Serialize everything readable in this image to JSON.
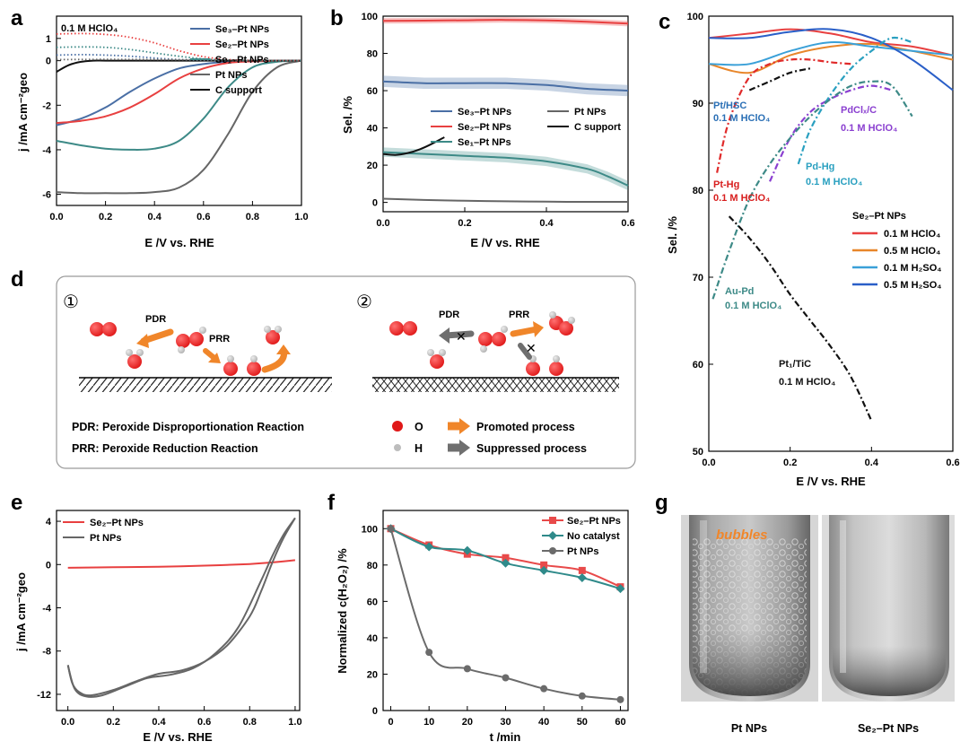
{
  "panels": {
    "a": {
      "label": "a",
      "condition": "0.1 M HClO₄",
      "xlabel": "E /V vs. RHE",
      "ylabel": "j /mA cm⁻²geo",
      "xticks": [
        "0.0",
        "0.2",
        "0.4",
        "0.6",
        "0.8",
        "1.0"
      ],
      "yticks": [
        "1",
        "0",
        "-2",
        "-4",
        "-6"
      ],
      "legend": [
        "Se₃–Pt NPs",
        "Se₂–Pt NPs",
        "Se₁–Pt NPs",
        "Pt NPs",
        "C support"
      ]
    },
    "b": {
      "label": "b",
      "xlabel": "E /V vs. RHE",
      "ylabel": "Sel. /%",
      "xticks": [
        "0.0",
        "0.2",
        "0.4",
        "0.6"
      ],
      "yticks": [
        "100",
        "80",
        "60",
        "40",
        "20",
        "0"
      ],
      "legend": [
        "Se₃–Pt NPs",
        "Se₂–Pt NPs",
        "Se₁–Pt NPs",
        "Pt NPs",
        "C support"
      ]
    },
    "c": {
      "label": "c",
      "xlabel": "E /V vs. RHE",
      "ylabel": "Sel. /%",
      "xticks": [
        "0.0",
        "0.2",
        "0.4",
        "0.6"
      ],
      "yticks": [
        "100",
        "90",
        "80",
        "70",
        "60",
        "50"
      ],
      "legend_title": "Se₂–Pt NPs",
      "legend": [
        "0.1 M HClO₄",
        "0.5 M HClO₄",
        "0.1 M H₂SO₄",
        "0.5 M H₂SO₄"
      ],
      "annotations": {
        "pthsc": [
          "Pt/HSC",
          "0.1 M HClO₄"
        ],
        "pdcl": [
          "PdClₓ/C",
          "0.1 M HClO₄"
        ],
        "pthg": [
          "Pt-Hg",
          "0.1 M HClO₄"
        ],
        "pdhg": [
          "Pd-Hg",
          "0.1 M HClO₄"
        ],
        "aupd": [
          "Au-Pd",
          "0.1 M HClO₄"
        ],
        "pttic": [
          "Pt₁/TiC",
          "0.1 M HClO₄"
        ]
      }
    },
    "d": {
      "label": "d",
      "scheme1": "①",
      "scheme2": "②",
      "pdr": "PDR",
      "prr": "PRR",
      "def_pdr": "PDR: Peroxide Disproportionation Reaction",
      "def_prr": "PRR: Peroxide Reduction Reaction",
      "key_o": "O",
      "key_h": "H",
      "key_promoted": "Promoted process",
      "key_suppressed": "Suppressed process"
    },
    "e": {
      "label": "e",
      "xlabel": "E /V vs. RHE",
      "ylabel": "j /mA cm⁻²geo",
      "xticks": [
        "0.0",
        "0.2",
        "0.4",
        "0.6",
        "0.8",
        "1.0"
      ],
      "yticks": [
        "4",
        "0",
        "-4",
        "-8",
        "-12"
      ],
      "legend": [
        "Se₂–Pt NPs",
        "Pt NPs"
      ]
    },
    "f": {
      "label": "f",
      "xlabel": "t /min",
      "ylabel": "Normalized c(H₂O₂) /%",
      "xticks": [
        "0",
        "10",
        "20",
        "30",
        "40",
        "50",
        "60"
      ],
      "yticks": [
        "100",
        "80",
        "60",
        "40",
        "20",
        "0"
      ],
      "legend": [
        "Se₂–Pt NPs",
        "No catalyst",
        "Pt NPs"
      ]
    },
    "g": {
      "label": "g",
      "bubbles": "bubbles",
      "caption_left": "Pt NPs",
      "caption_right": "Se₂–Pt NPs"
    }
  },
  "chart_data": [
    {
      "panel": "a",
      "type": "line",
      "xlabel": "E /V vs. RHE",
      "ylabel": "j /mA cm-2 geo",
      "xlim": [
        0,
        1.0
      ],
      "ylim": [
        -6.5,
        2.0
      ],
      "series": [
        {
          "name": "Se3-Pt NPs (disk)",
          "color": "#4a6fa5",
          "x": [
            0,
            0.1,
            0.2,
            0.3,
            0.4,
            0.5,
            0.6,
            0.7,
            0.8,
            0.9,
            1.0
          ],
          "y": [
            -2.9,
            -2.6,
            -2.1,
            -1.4,
            -0.8,
            -0.35,
            -0.15,
            -0.05,
            -0.02,
            -0.01,
            0
          ]
        },
        {
          "name": "Se2-Pt NPs (disk)",
          "color": "#e84040",
          "x": [
            0,
            0.1,
            0.2,
            0.3,
            0.4,
            0.5,
            0.6,
            0.7,
            0.8,
            0.9,
            1.0
          ],
          "y": [
            -2.8,
            -2.7,
            -2.5,
            -2.1,
            -1.5,
            -0.8,
            -0.35,
            -0.1,
            -0.03,
            -0.01,
            0
          ]
        },
        {
          "name": "Se1-Pt NPs (disk)",
          "color": "#3d8a87",
          "x": [
            0,
            0.1,
            0.2,
            0.3,
            0.4,
            0.5,
            0.6,
            0.7,
            0.8,
            0.9,
            1.0
          ],
          "y": [
            -3.6,
            -3.8,
            -3.95,
            -4.0,
            -3.95,
            -3.6,
            -2.6,
            -1.2,
            -0.3,
            -0.05,
            0
          ]
        },
        {
          "name": "Pt NPs (disk)",
          "color": "#666666",
          "x": [
            0,
            0.1,
            0.2,
            0.3,
            0.4,
            0.5,
            0.6,
            0.7,
            0.8,
            0.9,
            1.0
          ],
          "y": [
            -5.9,
            -5.95,
            -5.95,
            -5.95,
            -5.9,
            -5.7,
            -4.9,
            -3.3,
            -1.4,
            -0.3,
            0
          ]
        },
        {
          "name": "C support (disk)",
          "color": "#111111",
          "x": [
            0,
            0.05,
            0.1,
            0.15,
            0.2,
            0.3,
            0.5,
            0.8,
            1.0
          ],
          "y": [
            -0.5,
            -0.2,
            -0.05,
            0,
            0,
            0,
            0,
            0,
            0
          ]
        },
        {
          "name": "Se3-Pt NPs (ring)",
          "color": "#4a6fa5",
          "dotted": true,
          "x": [
            0,
            0.1,
            0.2,
            0.3,
            0.4,
            0.5,
            0.6,
            0.7,
            0.8,
            1.0
          ],
          "y": [
            0.25,
            0.27,
            0.25,
            0.2,
            0.12,
            0.05,
            0.02,
            0.01,
            0,
            0
          ]
        },
        {
          "name": "Se2-Pt NPs (ring)",
          "color": "#e84040",
          "dotted": true,
          "x": [
            0,
            0.1,
            0.2,
            0.3,
            0.4,
            0.5,
            0.6,
            0.7,
            0.8,
            1.0
          ],
          "y": [
            1.2,
            1.22,
            1.18,
            1.05,
            0.8,
            0.45,
            0.18,
            0.05,
            0.01,
            0
          ]
        },
        {
          "name": "Se1-Pt NPs (ring)",
          "color": "#3d8a87",
          "dotted": true,
          "x": [
            0,
            0.1,
            0.2,
            0.3,
            0.4,
            0.5,
            0.6,
            0.7,
            0.8,
            1.0
          ],
          "y": [
            0.6,
            0.62,
            0.6,
            0.5,
            0.35,
            0.2,
            0.08,
            0.02,
            0,
            0
          ]
        },
        {
          "name": "Pt NPs (ring)",
          "color": "#666666",
          "dotted": true,
          "x": [
            0,
            0.2,
            0.4,
            0.6,
            0.8,
            1.0
          ],
          "y": [
            0.05,
            0.06,
            0.05,
            0.03,
            0.01,
            0
          ]
        }
      ]
    },
    {
      "panel": "b",
      "type": "line",
      "xlabel": "E /V vs. RHE",
      "ylabel": "Sel. /%",
      "xlim": [
        0,
        0.6
      ],
      "ylim": [
        -5,
        100
      ],
      "series": [
        {
          "name": "Se3-Pt NPs",
          "color": "#4a6fa5",
          "band": 3,
          "x": [
            0,
            0.1,
            0.2,
            0.3,
            0.4,
            0.5,
            0.6
          ],
          "y": [
            65,
            64,
            64,
            64,
            63,
            61,
            60
          ]
        },
        {
          "name": "Se2-Pt NPs",
          "color": "#e84040",
          "band": 1.5,
          "x": [
            0,
            0.1,
            0.2,
            0.3,
            0.4,
            0.5,
            0.6
          ],
          "y": [
            97.5,
            97.6,
            97.8,
            98,
            97.7,
            97,
            96
          ]
        },
        {
          "name": "Se1-Pt NPs",
          "color": "#3d8a87",
          "band": 2.5,
          "x": [
            0,
            0.1,
            0.2,
            0.3,
            0.4,
            0.5,
            0.55,
            0.6
          ],
          "y": [
            27,
            26,
            25,
            24,
            22,
            18,
            14,
            9
          ]
        },
        {
          "name": "Pt NPs",
          "color": "#666666",
          "x": [
            0,
            0.1,
            0.2,
            0.3,
            0.4,
            0.5,
            0.6
          ],
          "y": [
            2,
            1.3,
            0.9,
            0.6,
            0.4,
            0.3,
            0.3
          ]
        },
        {
          "name": "C support",
          "color": "#111111",
          "x": [
            0,
            0.03,
            0.06,
            0.09,
            0.12,
            0.15
          ],
          "y": [
            26,
            25.5,
            26.5,
            28.5,
            31.5,
            35
          ]
        }
      ]
    },
    {
      "panel": "c",
      "type": "line",
      "xlabel": "E /V vs. RHE",
      "ylabel": "Sel. /%",
      "xlim": [
        0,
        0.6
      ],
      "ylim": [
        50,
        100
      ],
      "series": [
        {
          "name": "Se2-Pt NPs 0.1 M HClO4",
          "color": "#e84040",
          "x": [
            0,
            0.1,
            0.2,
            0.3,
            0.4,
            0.5,
            0.6
          ],
          "y": [
            97.5,
            98,
            98.5,
            98,
            97,
            96.5,
            95.5
          ]
        },
        {
          "name": "Se2-Pt NPs 0.5 M HClO4",
          "color": "#e8862a",
          "x": [
            0,
            0.1,
            0.2,
            0.3,
            0.4,
            0.5,
            0.6
          ],
          "y": [
            94.5,
            93.5,
            95.5,
            96.5,
            96.8,
            96,
            95
          ]
        },
        {
          "name": "Se2-Pt NPs 0.1 M H2SO4",
          "color": "#3aa0d8",
          "x": [
            0,
            0.1,
            0.2,
            0.3,
            0.4,
            0.5,
            0.6
          ],
          "y": [
            94.5,
            94.5,
            96,
            97,
            96.5,
            96,
            95.5
          ]
        },
        {
          "name": "Se2-Pt NPs 0.5 M H2SO4",
          "color": "#2a5fc8",
          "x": [
            0,
            0.1,
            0.2,
            0.3,
            0.4,
            0.5,
            0.6
          ],
          "y": [
            97.5,
            97.5,
            98.2,
            98.5,
            97.5,
            95,
            91.5
          ]
        },
        {
          "name": "Pt/HSC",
          "color": "#111111",
          "dashdot": true,
          "x": [
            0.1,
            0.15,
            0.2,
            0.25
          ],
          "y": [
            91.5,
            92.5,
            93.5,
            94
          ]
        },
        {
          "name": "PdClx/C",
          "color": "#8a3fd0",
          "dashdot": true,
          "x": [
            0.15,
            0.2,
            0.25,
            0.3,
            0.35,
            0.4,
            0.45
          ],
          "y": [
            81,
            86,
            89,
            90.5,
            91.5,
            92,
            91.5
          ]
        },
        {
          "name": "Pt-Hg",
          "color": "#e02a2a",
          "dashdot": true,
          "x": [
            0.02,
            0.05,
            0.1,
            0.15,
            0.2,
            0.25,
            0.3,
            0.35
          ],
          "y": [
            82,
            88,
            93,
            94.5,
            95,
            95,
            94.7,
            94.5
          ]
        },
        {
          "name": "Pd-Hg",
          "color": "#2aa0c0",
          "dashdot": true,
          "x": [
            0.22,
            0.25,
            0.3,
            0.35,
            0.4,
            0.45,
            0.5
          ],
          "y": [
            83,
            87,
            91,
            94,
            96,
            97.5,
            97
          ]
        },
        {
          "name": "Au-Pd",
          "color": "#3d8a87",
          "dashdot": true,
          "x": [
            0.01,
            0.05,
            0.1,
            0.15,
            0.2,
            0.25,
            0.3,
            0.35,
            0.4,
            0.45,
            0.5
          ],
          "y": [
            67.5,
            73,
            79,
            83,
            86,
            88.5,
            90.5,
            92,
            92.5,
            92,
            88.5
          ]
        },
        {
          "name": "Pt1/TiC",
          "color": "#111111",
          "dashdot": true,
          "x": [
            0.05,
            0.1,
            0.15,
            0.2,
            0.25,
            0.3,
            0.35,
            0.4
          ],
          "y": [
            77,
            74.5,
            71.5,
            68,
            65,
            62,
            58.5,
            53.5
          ]
        }
      ]
    },
    {
      "panel": "e",
      "type": "line",
      "xlabel": "E /V vs. RHE",
      "ylabel": "j /mA cm-2 geo",
      "xlim": [
        -0.05,
        1.02
      ],
      "ylim": [
        -13.5,
        5
      ],
      "series": [
        {
          "name": "Se2-Pt NPs",
          "color": "#e84040",
          "x": [
            0,
            0.2,
            0.4,
            0.6,
            0.8,
            0.9,
            1.0
          ],
          "y": [
            -0.3,
            -0.25,
            -0.2,
            -0.1,
            0.05,
            0.2,
            0.4
          ]
        },
        {
          "name": "Pt NPs (cathodic scan)",
          "color": "#666666",
          "x": [
            1.0,
            0.95,
            0.9,
            0.85,
            0.8,
            0.7,
            0.6,
            0.5,
            0.4,
            0.3,
            0.2,
            0.1,
            0.05,
            0.02,
            0.0
          ],
          "y": [
            4.3,
            2.5,
            0.2,
            -2.5,
            -4.8,
            -7.5,
            -9.0,
            -9.8,
            -10.1,
            -10.8,
            -11.6,
            -12.1,
            -11.8,
            -11.0,
            -9.3
          ]
        },
        {
          "name": "Pt NPs (anodic scan)",
          "color": "#666666",
          "x": [
            0.0,
            0.03,
            0.08,
            0.15,
            0.25,
            0.35,
            0.45,
            0.55,
            0.65,
            0.75,
            0.85,
            0.9,
            0.95,
            1.0
          ],
          "y": [
            -9.3,
            -11.5,
            -12.2,
            -12.1,
            -11.3,
            -10.5,
            -10.2,
            -9.6,
            -8.2,
            -5.8,
            -1.5,
            0.8,
            2.8,
            4.3
          ]
        }
      ]
    },
    {
      "panel": "f",
      "type": "line",
      "xlabel": "t /min",
      "ylabel": "Normalized c(H2O2) /%",
      "xlim": [
        -2,
        62
      ],
      "ylim": [
        0,
        110
      ],
      "series": [
        {
          "name": "Se2-Pt NPs",
          "color": "#e84a4a",
          "marker": "square",
          "x": [
            0,
            10,
            20,
            30,
            40,
            50,
            60
          ],
          "y": [
            100,
            91,
            86,
            84,
            80,
            77,
            68
          ]
        },
        {
          "name": "No catalyst",
          "color": "#2f8a8a",
          "marker": "diamond",
          "x": [
            0,
            10,
            20,
            30,
            40,
            50,
            60
          ],
          "y": [
            100,
            90,
            88,
            81,
            77,
            73,
            67
          ]
        },
        {
          "name": "Pt NPs",
          "color": "#6b6b6b",
          "marker": "circle",
          "x": [
            0,
            10,
            20,
            30,
            40,
            50,
            60
          ],
          "y": [
            100,
            32,
            23,
            18,
            12,
            8,
            6
          ]
        }
      ]
    }
  ]
}
